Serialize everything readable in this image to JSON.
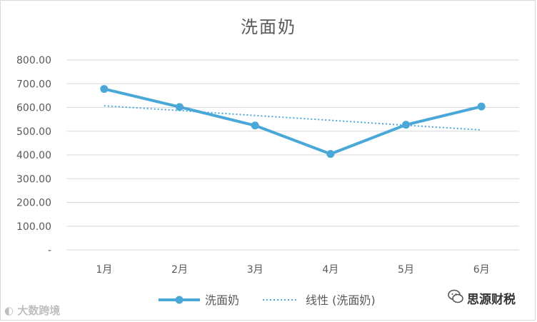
{
  "chart_data": {
    "type": "line",
    "title": "洗面奶",
    "categories": [
      "1月",
      "2月",
      "3月",
      "4月",
      "5月",
      "6月"
    ],
    "series": [
      {
        "name": "洗面奶",
        "values": [
          678,
          602,
          524,
          404,
          527,
          604
        ],
        "color": "#4aa8d8"
      }
    ],
    "trendline": {
      "name": "线性 (洗面奶)",
      "type": "linear",
      "values": [
        607,
        587,
        566,
        546,
        525,
        505
      ],
      "color": "#4aa8d8",
      "style": "dotted"
    },
    "y_ticks": [
      "-",
      "100.00",
      "200.00",
      "300.00",
      "400.00",
      "500.00",
      "600.00",
      "700.00",
      "800.00"
    ],
    "ylim": [
      0,
      800
    ],
    "grid": true,
    "legend_position": "bottom"
  },
  "watermarks": {
    "left": "大数跨境",
    "right": "思源财税",
    "left_icon": "logo-icon",
    "right_icon": "wechat-icon"
  }
}
